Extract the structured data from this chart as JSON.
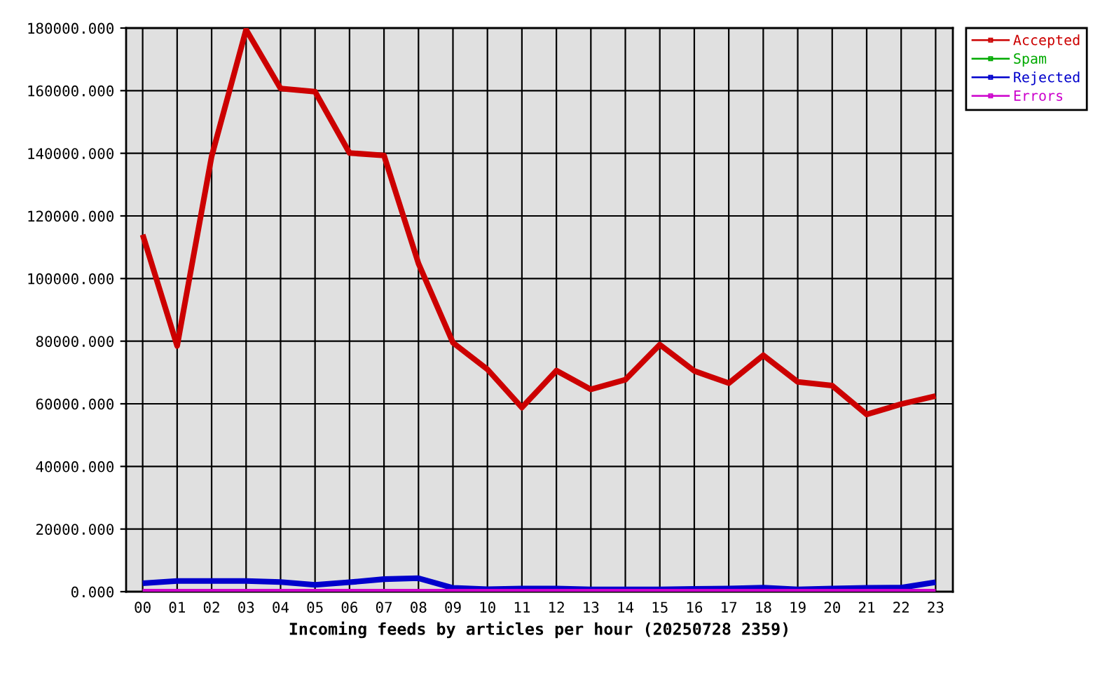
{
  "chart_data": {
    "type": "line",
    "xlabel": "Incoming feeds by articles per hour (20250728 2359)",
    "categories": [
      "00",
      "01",
      "02",
      "03",
      "04",
      "05",
      "06",
      "07",
      "08",
      "09",
      "10",
      "11",
      "12",
      "13",
      "14",
      "15",
      "16",
      "17",
      "18",
      "19",
      "20",
      "21",
      "22",
      "23"
    ],
    "series": [
      {
        "name": "Accepted",
        "color": "#cc0000",
        "values": [
          114000,
          78500,
          139000,
          179500,
          160700,
          159700,
          140100,
          139300,
          104800,
          79500,
          71000,
          58800,
          70600,
          64600,
          67700,
          78900,
          70500,
          66600,
          75500,
          67000,
          65800,
          56600,
          59900,
          62500
        ]
      },
      {
        "name": "Spam",
        "color": "#00aa00",
        "values": [
          null,
          null,
          null,
          null,
          null,
          null,
          null,
          null,
          null,
          null,
          null,
          null,
          null,
          null,
          null,
          null,
          null,
          null,
          null,
          null,
          null,
          null,
          null,
          null
        ]
      },
      {
        "name": "Rejected",
        "color": "#0000cc",
        "values": [
          2700,
          3400,
          3400,
          3400,
          3100,
          2200,
          3000,
          4000,
          4300,
          1200,
          800,
          1000,
          1000,
          700,
          700,
          700,
          900,
          1000,
          1300,
          700,
          1000,
          1200,
          1300,
          3000
        ]
      },
      {
        "name": "Errors",
        "color": "#cc00cc",
        "values": [
          0,
          0,
          0,
          0,
          0,
          0,
          0,
          0,
          0,
          0,
          0,
          0,
          0,
          0,
          0,
          0,
          0,
          0,
          0,
          0,
          0,
          0,
          0,
          0
        ]
      }
    ],
    "ylim": [
      0,
      180000
    ],
    "yticks": [
      {
        "value": 0,
        "label": "0.000"
      },
      {
        "value": 20000,
        "label": "20000.000"
      },
      {
        "value": 40000,
        "label": "40000.000"
      },
      {
        "value": 60000,
        "label": "60000.000"
      },
      {
        "value": 80000,
        "label": "80000.000"
      },
      {
        "value": 100000,
        "label": "100000.000"
      },
      {
        "value": 120000,
        "label": "120000.000"
      },
      {
        "value": 140000,
        "label": "140000.000"
      },
      {
        "value": 160000,
        "label": "160000.000"
      },
      {
        "value": 180000,
        "label": "180000.000"
      }
    ],
    "grid": true,
    "legend": "top right",
    "line_style": "solid"
  }
}
